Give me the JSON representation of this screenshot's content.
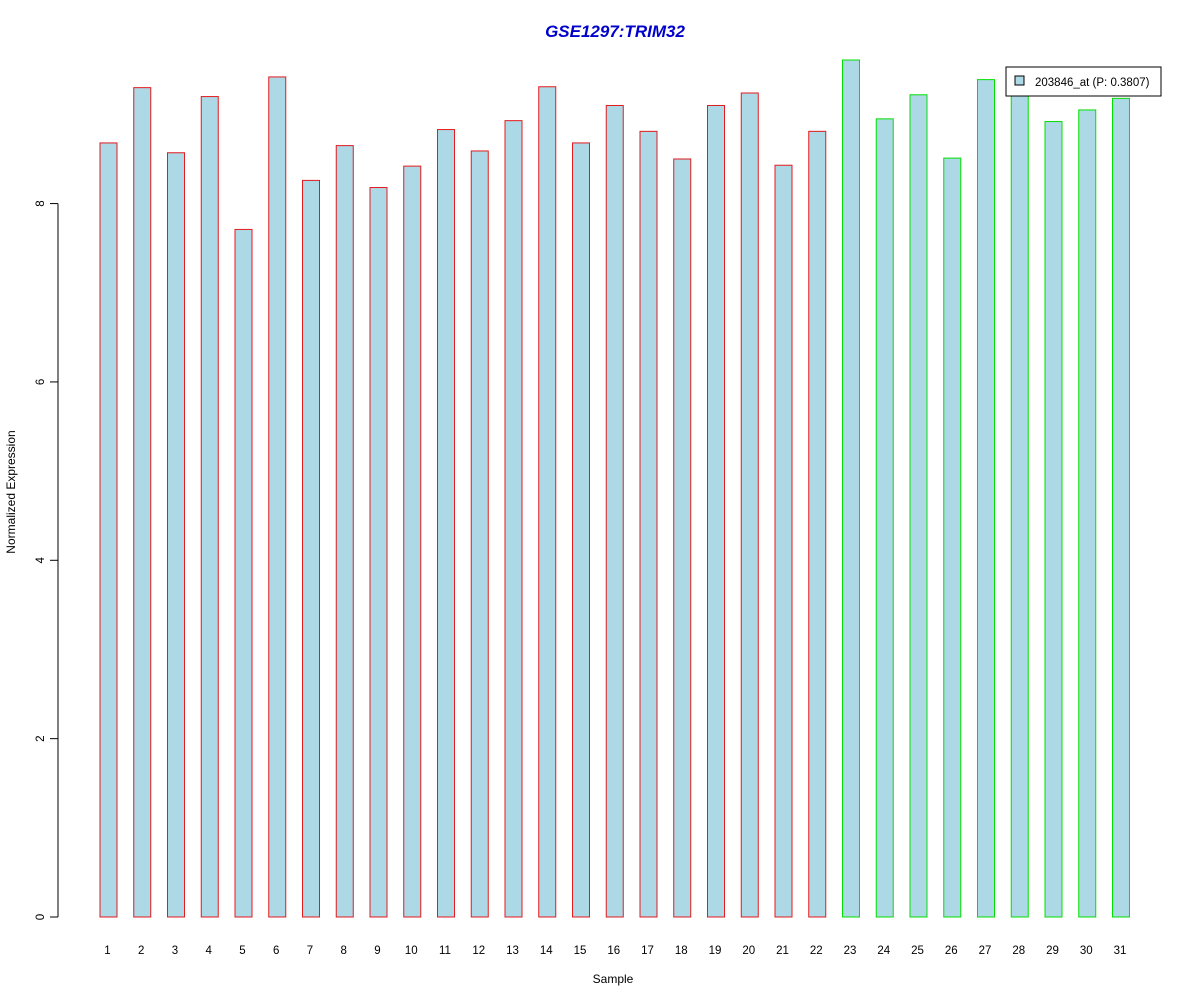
{
  "chart_data": {
    "type": "bar",
    "title": "GSE1297:TRIM32",
    "xlabel": "Sample",
    "ylabel": "Normalized Expression",
    "categories": [
      "1",
      "2",
      "3",
      "4",
      "5",
      "6",
      "7",
      "8",
      "9",
      "10",
      "11",
      "12",
      "13",
      "14",
      "15",
      "16",
      "17",
      "18",
      "19",
      "20",
      "21",
      "22",
      "23",
      "24",
      "25",
      "26",
      "27",
      "28",
      "29",
      "30",
      "31"
    ],
    "series": [
      {
        "name": "203846_at (P: 0.3807)",
        "values": [
          8.68,
          9.3,
          8.57,
          9.2,
          7.71,
          9.42,
          8.26,
          8.65,
          8.18,
          8.42,
          8.83,
          8.59,
          8.93,
          9.31,
          8.68,
          9.1,
          8.81,
          8.5,
          9.1,
          9.24,
          8.43,
          8.81,
          9.61,
          8.95,
          9.22,
          8.51,
          9.39,
          9.25,
          8.92,
          9.05,
          9.18
        ]
      }
    ],
    "groups": [
      {
        "samples": [
          1,
          22
        ],
        "color": "#e41a1c"
      },
      {
        "samples": [
          23,
          31
        ],
        "color": "#00e000"
      }
    ],
    "yticks": [
      0,
      2,
      4,
      6,
      8
    ],
    "ylim": [
      0,
      9.61
    ],
    "bar_fill": "#add8e6",
    "title_color": "#0000cc",
    "legend_position": "top-right",
    "grid": false
  }
}
